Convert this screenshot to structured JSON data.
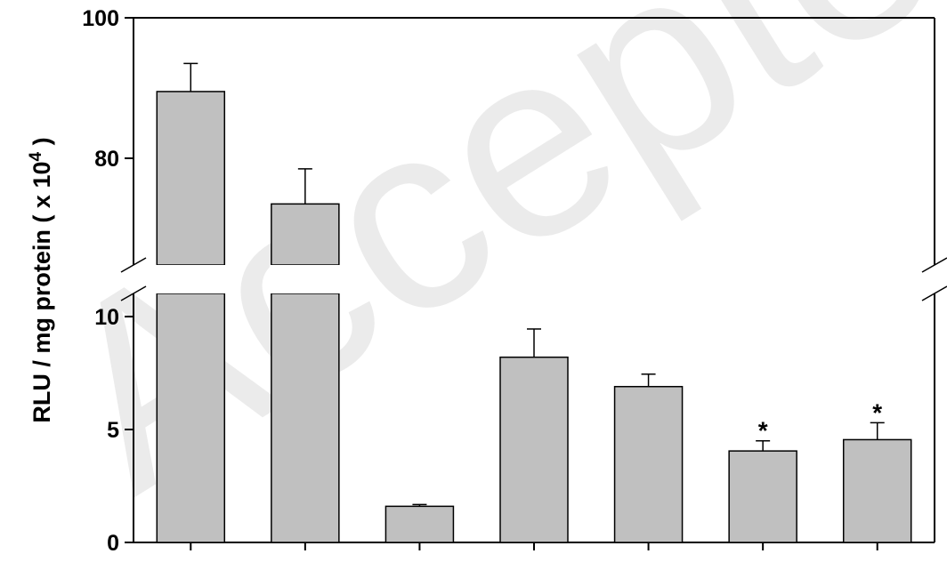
{
  "chart_data": {
    "type": "bar",
    "ylabel": "RLU / mg protein ( x 10",
    "ylabel_superscript": "4",
    "ylabel_suffix": " )",
    "categories": [
      "",
      "",
      "",
      "",
      "",
      "",
      ""
    ],
    "values": [
      89.5,
      73.5,
      1.6,
      8.2,
      6.9,
      4.05,
      4.55
    ],
    "errors": [
      4.0,
      5.0,
      0.08,
      1.25,
      0.55,
      0.45,
      0.75
    ],
    "significance": [
      "",
      "",
      "",
      "",
      "",
      "*",
      "*"
    ],
    "y_axis": {
      "broken": true,
      "lower_segment": {
        "range": [
          0,
          11
        ],
        "ticks": [
          "0",
          "5",
          "10"
        ],
        "tick_values": [
          0,
          5,
          10
        ]
      },
      "upper_segment": {
        "range": [
          66,
          100
        ],
        "ticks": [
          "80",
          "100"
        ],
        "tick_values": [
          80,
          100
        ]
      }
    },
    "bar_color": "#c0c0c0",
    "grid": false,
    "legend": "none"
  },
  "watermark": {
    "text": "Accepted Manuscript",
    "color": "#d9d9d9"
  }
}
